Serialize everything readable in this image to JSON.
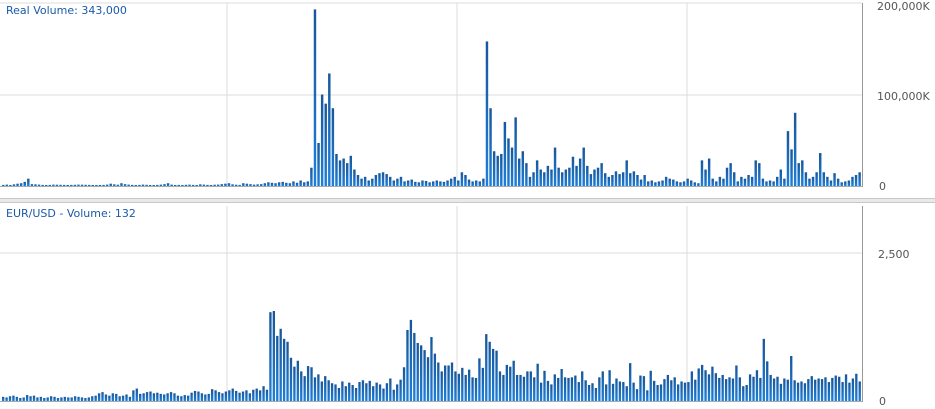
{
  "colors": {
    "bar_top": "#17579c",
    "bar_bottom": "#1e7fd8",
    "grid": "#dcdcdc",
    "title": "#1a5aa8",
    "separator": "#c8c8c8"
  },
  "chart_data": [
    {
      "type": "bar",
      "title": "Real Volume: 343,000",
      "y_ticks": [
        "200,000K",
        "100,000K",
        "0"
      ],
      "ylim": [
        0,
        200000
      ],
      "unit": "K",
      "values": [
        1200,
        1500,
        1000,
        1800,
        2500,
        3000,
        4500,
        8000,
        2000,
        1800,
        1500,
        1200,
        1000,
        1200,
        1500,
        1400,
        1300,
        1200,
        1000,
        1200,
        1300,
        1500,
        1400,
        1300,
        1200,
        1100,
        1000,
        1000,
        1200,
        1500,
        2500,
        1800,
        1400,
        3000,
        2000,
        1500,
        1200,
        1000,
        1200,
        1500,
        1300,
        1000,
        1100,
        1200,
        1500,
        2000,
        3000,
        1500,
        1000,
        1200,
        1100,
        1300,
        1500,
        1200,
        1000,
        1800,
        1500,
        1200,
        1000,
        1400,
        1500,
        2000,
        2500,
        3000,
        1800,
        1400,
        1200,
        3000,
        2500,
        2000,
        1500,
        1800,
        2000,
        3000,
        4000,
        3500,
        3000,
        4000,
        4500,
        3500,
        3000,
        5000,
        3500,
        6000,
        4000,
        5000,
        20000,
        193000,
        47000,
        100000,
        90000,
        123000,
        85000,
        35000,
        28000,
        30000,
        25000,
        33000,
        18000,
        12000,
        8000,
        10000,
        6000,
        8000,
        12000,
        14000,
        15000,
        13000,
        10000,
        6000,
        8000,
        10000,
        5000,
        6000,
        7000,
        4500,
        4000,
        6000,
        5500,
        4000,
        5000,
        6000,
        5000,
        4500,
        6000,
        8000,
        10000,
        6000,
        15000,
        12000,
        7000,
        5000,
        6000,
        5000,
        8000,
        158000,
        85000,
        38000,
        33000,
        35000,
        70000,
        52000,
        42000,
        75000,
        30000,
        38000,
        25000,
        10000,
        15000,
        28000,
        18000,
        15000,
        22000,
        18000,
        42000,
        20000,
        15000,
        18000,
        20000,
        32000,
        22000,
        30000,
        42000,
        22000,
        13000,
        18000,
        20000,
        25000,
        14000,
        10000,
        12000,
        16000,
        13000,
        15000,
        28000,
        14000,
        16000,
        12000,
        7000,
        12000,
        5000,
        6000,
        4000,
        5000,
        6000,
        10000,
        8000,
        7000,
        5000,
        4000,
        5000,
        8000,
        6000,
        4000,
        3000,
        28000,
        18000,
        30000,
        8000,
        5000,
        10000,
        8000,
        20000,
        25000,
        15000,
        5000,
        10000,
        8000,
        12000,
        10000,
        28000,
        25000,
        8000,
        5000,
        6000,
        5000,
        10000,
        18000,
        8000,
        60000,
        40000,
        80000,
        25000,
        28000,
        15000,
        8000,
        10000,
        15000,
        36000,
        15000,
        10000,
        6000,
        14000,
        8000,
        4000,
        5000,
        6000,
        10000,
        12000,
        15000
      ]
    },
    {
      "type": "bar",
      "title": "EUR/USD - Volume: 132",
      "y_ticks": [
        "2,500",
        "0"
      ],
      "ylim": [
        0,
        2500
      ],
      "values": [
        70,
        60,
        80,
        90,
        70,
        50,
        60,
        100,
        80,
        90,
        60,
        70,
        50,
        60,
        80,
        70,
        50,
        60,
        70,
        60,
        60,
        80,
        70,
        60,
        50,
        60,
        80,
        90,
        130,
        150,
        110,
        90,
        130,
        120,
        80,
        90,
        110,
        70,
        180,
        210,
        120,
        130,
        150,
        160,
        130,
        140,
        120,
        110,
        130,
        150,
        130,
        90,
        80,
        100,
        90,
        140,
        170,
        160,
        130,
        110,
        120,
        200,
        180,
        150,
        130,
        160,
        180,
        210,
        170,
        140,
        160,
        180,
        130,
        190,
        210,
        180,
        250,
        190,
        1500,
        1520,
        1100,
        1220,
        1050,
        1000,
        730,
        580,
        680,
        500,
        420,
        590,
        570,
        400,
        450,
        330,
        420,
        350,
        300,
        280,
        220,
        330,
        250,
        310,
        270,
        220,
        320,
        350,
        300,
        340,
        250,
        310,
        280,
        210,
        300,
        380,
        190,
        280,
        360,
        570,
        1200,
        1370,
        1150,
        980,
        940,
        860,
        740,
        1080,
        800,
        650,
        500,
        600,
        600,
        650,
        500,
        460,
        560,
        440,
        530,
        400,
        390,
        720,
        560,
        1130,
        1000,
        880,
        850,
        500,
        440,
        610,
        580,
        680,
        440,
        440,
        410,
        500,
        500,
        400,
        630,
        310,
        510,
        340,
        280,
        450,
        390,
        540,
        400,
        390,
        400,
        430,
        320,
        500,
        350,
        270,
        300,
        220,
        400,
        500,
        280,
        520,
        290,
        380,
        330,
        320,
        250,
        640,
        310,
        200,
        430,
        420,
        180,
        510,
        340,
        270,
        280,
        370,
        440,
        350,
        400,
        280,
        330,
        310,
        320,
        500,
        360,
        550,
        610,
        520,
        450,
        580,
        470,
        390,
        440,
        370,
        400,
        380,
        600,
        400,
        250,
        270,
        450,
        410,
        520,
        390,
        1050,
        670,
        440,
        380,
        410,
        290,
        380,
        360,
        760,
        350,
        310,
        330,
        300,
        370,
        420,
        360,
        380,
        370,
        400,
        320,
        390,
        430,
        410,
        320,
        450,
        310,
        380,
        460,
        330
      ]
    }
  ]
}
